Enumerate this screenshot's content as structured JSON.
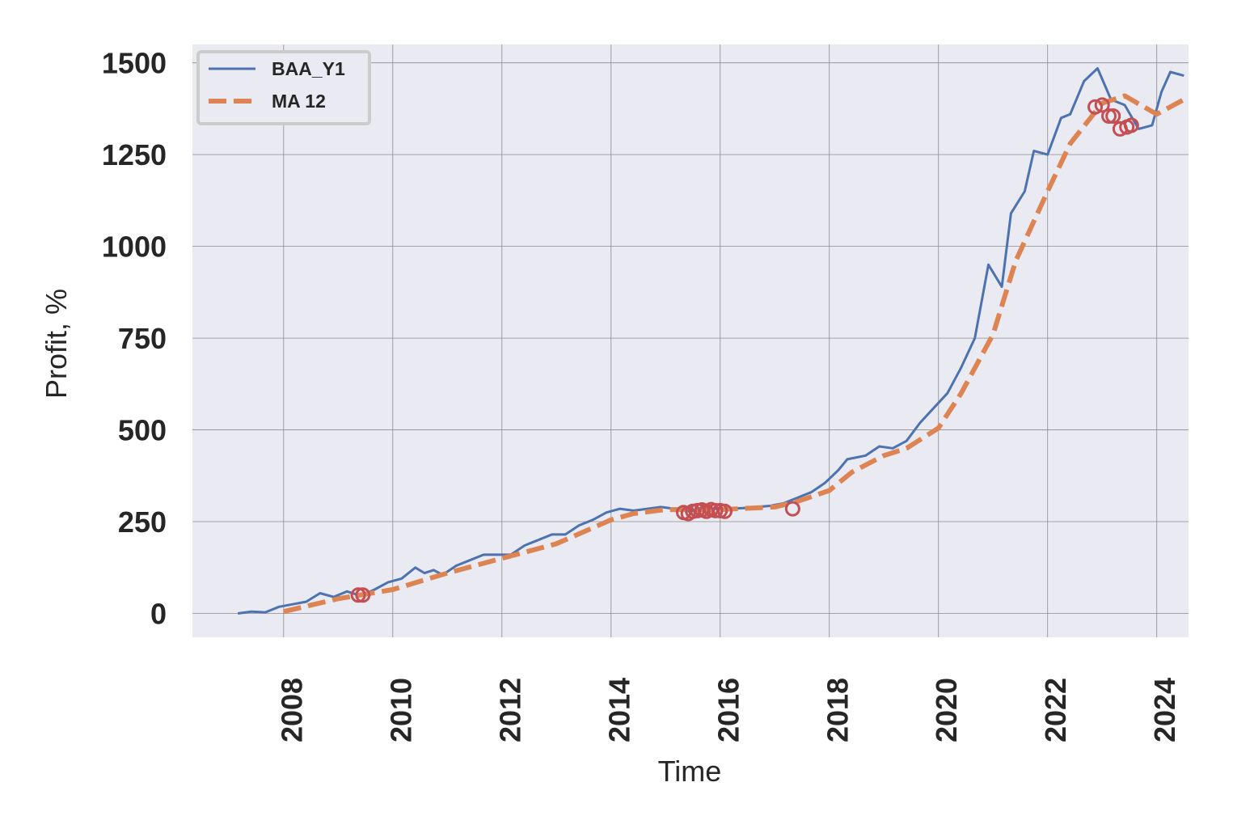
{
  "chart_data": {
    "type": "line",
    "title": "",
    "xlabel": "Time",
    "ylabel": "Profit, %",
    "xlim": [
      "2006-05-01",
      "2024-08-01"
    ],
    "ylim": [
      -65,
      1550
    ],
    "xticks": [
      "2008",
      "2010",
      "2012",
      "2014",
      "2016",
      "2018",
      "2020",
      "2022",
      "2024"
    ],
    "yticks": [
      "0",
      "250",
      "500",
      "750",
      "1000",
      "1250",
      "1500"
    ],
    "grid": true,
    "legend_position": "upper-left",
    "series": [
      {
        "name": "BAA_Y1",
        "color": "#4c72b0",
        "style": "solid",
        "points": [
          [
            "2007-03-01",
            0
          ],
          [
            "2007-06-01",
            5
          ],
          [
            "2007-09-01",
            3
          ],
          [
            "2007-12-01",
            18
          ],
          [
            "2008-03-01",
            25
          ],
          [
            "2008-06-01",
            32
          ],
          [
            "2008-09-01",
            55
          ],
          [
            "2008-12-01",
            45
          ],
          [
            "2009-03-01",
            60
          ],
          [
            "2009-06-01",
            48
          ],
          [
            "2009-09-01",
            65
          ],
          [
            "2009-12-01",
            85
          ],
          [
            "2010-03-01",
            95
          ],
          [
            "2010-06-01",
            125
          ],
          [
            "2010-08-01",
            110
          ],
          [
            "2010-10-01",
            118
          ],
          [
            "2010-12-01",
            105
          ],
          [
            "2011-03-01",
            130
          ],
          [
            "2011-06-01",
            145
          ],
          [
            "2011-09-01",
            160
          ],
          [
            "2011-12-01",
            160
          ],
          [
            "2012-03-01",
            160
          ],
          [
            "2012-06-01",
            185
          ],
          [
            "2012-09-01",
            200
          ],
          [
            "2012-12-01",
            215
          ],
          [
            "2013-03-01",
            215
          ],
          [
            "2013-06-01",
            240
          ],
          [
            "2013-09-01",
            255
          ],
          [
            "2013-12-01",
            275
          ],
          [
            "2014-03-01",
            285
          ],
          [
            "2014-06-01",
            280
          ],
          [
            "2014-09-01",
            285
          ],
          [
            "2014-12-01",
            290
          ],
          [
            "2015-03-01",
            285
          ],
          [
            "2015-06-01",
            278
          ],
          [
            "2015-09-01",
            282
          ],
          [
            "2015-12-01",
            285
          ],
          [
            "2016-03-01",
            285
          ],
          [
            "2016-06-01",
            287
          ],
          [
            "2016-09-01",
            290
          ],
          [
            "2016-12-01",
            293
          ],
          [
            "2017-03-01",
            300
          ],
          [
            "2017-06-01",
            315
          ],
          [
            "2017-09-01",
            330
          ],
          [
            "2017-12-01",
            355
          ],
          [
            "2018-03-01",
            390
          ],
          [
            "2018-05-01",
            420
          ],
          [
            "2018-09-01",
            430
          ],
          [
            "2018-12-01",
            455
          ],
          [
            "2019-03-01",
            450
          ],
          [
            "2019-06-01",
            470
          ],
          [
            "2019-09-01",
            520
          ],
          [
            "2019-12-01",
            560
          ],
          [
            "2020-03-01",
            600
          ],
          [
            "2020-06-01",
            670
          ],
          [
            "2020-09-01",
            750
          ],
          [
            "2020-12-01",
            950
          ],
          [
            "2021-03-01",
            890
          ],
          [
            "2021-05-01",
            1090
          ],
          [
            "2021-08-01",
            1150
          ],
          [
            "2021-10-01",
            1260
          ],
          [
            "2022-01-01",
            1250
          ],
          [
            "2022-04-01",
            1350
          ],
          [
            "2022-06-01",
            1360
          ],
          [
            "2022-09-01",
            1450
          ],
          [
            "2022-12-01",
            1485
          ],
          [
            "2023-03-01",
            1400
          ],
          [
            "2023-06-01",
            1385
          ],
          [
            "2023-09-01",
            1320
          ],
          [
            "2023-12-01",
            1330
          ],
          [
            "2024-02-01",
            1420
          ],
          [
            "2024-04-01",
            1475
          ],
          [
            "2024-07-01",
            1465
          ]
        ]
      },
      {
        "name": "MA 12",
        "color": "#dd8452",
        "style": "dashed",
        "points": [
          [
            "2008-01-01",
            5
          ],
          [
            "2009-01-01",
            40
          ],
          [
            "2010-01-01",
            65
          ],
          [
            "2011-01-01",
            110
          ],
          [
            "2012-01-01",
            150
          ],
          [
            "2013-01-01",
            190
          ],
          [
            "2014-01-01",
            255
          ],
          [
            "2014-06-01",
            272
          ],
          [
            "2015-01-01",
            283
          ],
          [
            "2016-01-01",
            283
          ],
          [
            "2017-01-01",
            290
          ],
          [
            "2017-06-01",
            305
          ],
          [
            "2018-01-01",
            335
          ],
          [
            "2018-06-01",
            385
          ],
          [
            "2019-01-01",
            430
          ],
          [
            "2019-06-01",
            450
          ],
          [
            "2020-01-01",
            505
          ],
          [
            "2020-06-01",
            600
          ],
          [
            "2021-01-01",
            760
          ],
          [
            "2021-06-01",
            960
          ],
          [
            "2022-01-01",
            1150
          ],
          [
            "2022-06-01",
            1280
          ],
          [
            "2023-01-01",
            1390
          ],
          [
            "2023-06-01",
            1410
          ],
          [
            "2024-01-01",
            1360
          ],
          [
            "2024-07-01",
            1400
          ]
        ]
      }
    ],
    "markers": {
      "shape": "hollow-circle",
      "color": "#c44e52",
      "points": [
        [
          "2009-05-15",
          50
        ],
        [
          "2009-06-15",
          50
        ],
        [
          "2015-05-01",
          275
        ],
        [
          "2015-06-01",
          272
        ],
        [
          "2015-07-01",
          278
        ],
        [
          "2015-08-01",
          280
        ],
        [
          "2015-09-01",
          282
        ],
        [
          "2015-10-01",
          278
        ],
        [
          "2015-11-01",
          283
        ],
        [
          "2015-12-01",
          280
        ],
        [
          "2016-01-01",
          280
        ],
        [
          "2016-02-01",
          278
        ],
        [
          "2017-05-01",
          285
        ],
        [
          "2022-11-15",
          1380
        ],
        [
          "2023-01-01",
          1385
        ],
        [
          "2023-02-15",
          1355
        ],
        [
          "2023-03-15",
          1355
        ],
        [
          "2023-05-01",
          1320
        ],
        [
          "2023-06-15",
          1325
        ],
        [
          "2023-07-15",
          1330
        ]
      ]
    }
  }
}
